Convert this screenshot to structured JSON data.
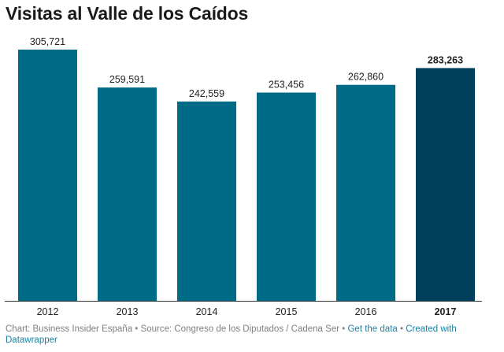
{
  "title": "Visitas al Valle de los Caídos",
  "chart_data": {
    "type": "bar",
    "title": "Visitas al Valle de los Caídos",
    "categories": [
      "2012",
      "2013",
      "2014",
      "2015",
      "2016",
      "2017"
    ],
    "values": [
      305721,
      259591,
      242559,
      253456,
      262860,
      283263
    ],
    "value_labels": [
      "305,721",
      "259,591",
      "242,559",
      "253,456",
      "262,860",
      "283,263"
    ],
    "highlight_index": 5,
    "ylim": [
      0,
      320000
    ],
    "xlabel": "",
    "ylabel": "",
    "grid": false,
    "colors": {
      "bar": "#006b86",
      "highlight": "#003f5c",
      "axis": "#333333"
    }
  },
  "footer": {
    "chart_credit": "Chart: Business Insider España",
    "source": "Source: Congreso de los Diputados / Cadena Ser",
    "get_data_link": "Get the data",
    "created_with_link": "Created with Datawrapper",
    "separator": "•"
  }
}
